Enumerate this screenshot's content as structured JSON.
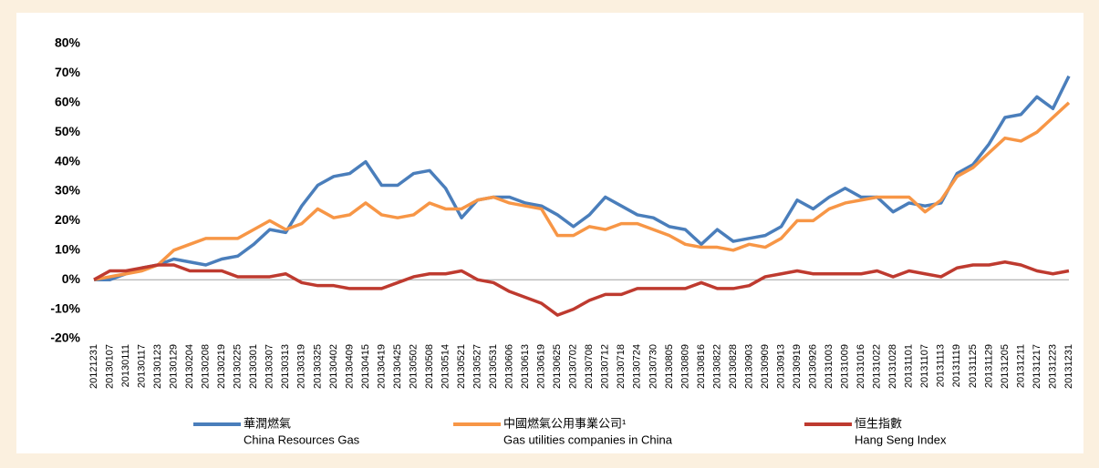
{
  "chart_data": {
    "type": "line",
    "categories": [
      "20121231",
      "20130107",
      "20130111",
      "20130117",
      "20130123",
      "20130129",
      "20130204",
      "20130208",
      "20130219",
      "20130225",
      "20130301",
      "20130307",
      "20130313",
      "20130319",
      "20130325",
      "20130402",
      "20130409",
      "20130415",
      "20130419",
      "20130425",
      "20130502",
      "20130508",
      "20130514",
      "20130521",
      "20130527",
      "20130531",
      "20130606",
      "20130613",
      "20130619",
      "20130625",
      "20130702",
      "20130708",
      "20130712",
      "20130718",
      "20130724",
      "20130730",
      "20130805",
      "20130809",
      "20130816",
      "20130822",
      "20130828",
      "20130903",
      "20130909",
      "20130913",
      "20130919",
      "20130926",
      "20131003",
      "20131009",
      "20131016",
      "20131022",
      "20131028",
      "20131101",
      "20131107",
      "20131113",
      "20131119",
      "20131125",
      "20131129",
      "20131205",
      "20131211",
      "20131217",
      "20131223",
      "20131231"
    ],
    "series": [
      {
        "name": "華潤燃氣",
        "name_en": "China Resources Gas",
        "color": "#4a7ebb",
        "values": [
          0,
          0,
          2,
          4,
          5,
          7,
          6,
          5,
          7,
          8,
          12,
          17,
          16,
          25,
          32,
          35,
          36,
          40,
          32,
          32,
          36,
          37,
          31,
          21,
          27,
          28,
          28,
          26,
          25,
          22,
          18,
          22,
          28,
          25,
          22,
          21,
          18,
          17,
          12,
          17,
          13,
          14,
          15,
          18,
          27,
          24,
          28,
          31,
          28,
          28,
          23,
          26,
          25,
          26,
          36,
          39,
          46,
          55,
          56,
          62,
          58,
          69
        ]
      },
      {
        "name": "中國燃氣公用事業公司¹",
        "name_en": "Gas utilities companies in China",
        "color": "#f79646",
        "values": [
          0,
          1,
          2,
          3,
          5,
          10,
          12,
          14,
          14,
          14,
          17,
          20,
          17,
          19,
          24,
          21,
          22,
          26,
          22,
          21,
          22,
          26,
          24,
          24,
          27,
          28,
          26,
          25,
          24,
          15,
          15,
          18,
          17,
          19,
          19,
          17,
          15,
          12,
          11,
          11,
          10,
          12,
          11,
          14,
          20,
          20,
          24,
          26,
          27,
          28,
          28,
          28,
          23,
          27,
          35,
          38,
          43,
          48,
          47,
          50,
          55,
          60
        ]
      },
      {
        "name": "恒生指數",
        "name_en": "Hang Seng Index",
        "color": "#be3a2f",
        "values": [
          0,
          3,
          3,
          4,
          5,
          5,
          3,
          3,
          3,
          1,
          1,
          1,
          2,
          -1,
          -2,
          -2,
          -3,
          -3,
          -3,
          -1,
          1,
          2,
          2,
          3,
          0,
          -1,
          -4,
          -6,
          -8,
          -12,
          -10,
          -7,
          -5,
          -5,
          -3,
          -3,
          -3,
          -3,
          -1,
          -3,
          -3,
          -2,
          1,
          2,
          3,
          2,
          2,
          2,
          2,
          3,
          1,
          3,
          2,
          1,
          4,
          5,
          5,
          6,
          5,
          3,
          2,
          3
        ]
      }
    ],
    "ylim": [
      -20,
      80
    ],
    "yticks": [
      {
        "value": -20,
        "label": "-20%"
      },
      {
        "value": -10,
        "label": "-10%"
      },
      {
        "value": 0,
        "label": "0%"
      },
      {
        "value": 10,
        "label": "10%"
      },
      {
        "value": 20,
        "label": "20%"
      },
      {
        "value": 30,
        "label": "30%"
      },
      {
        "value": 40,
        "label": "40%"
      },
      {
        "value": 50,
        "label": "50%"
      },
      {
        "value": 60,
        "label": "60%"
      },
      {
        "value": 70,
        "label": "70%"
      },
      {
        "value": 80,
        "label": "80%"
      }
    ],
    "grid": false
  }
}
